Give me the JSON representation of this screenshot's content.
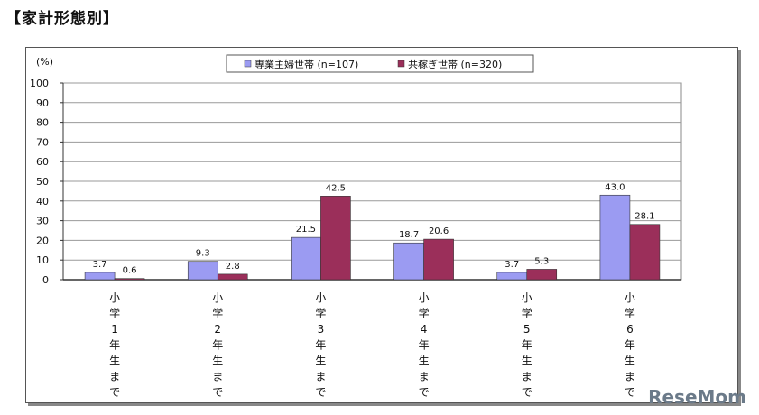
{
  "page": {
    "heading": "【家計形態別】"
  },
  "watermark": "ReseMom",
  "chart_data": {
    "type": "bar",
    "title": "",
    "ylabel": "(%)",
    "ylim": [
      0,
      100
    ],
    "yticks": [
      0,
      10,
      20,
      30,
      40,
      50,
      60,
      70,
      80,
      90,
      100
    ],
    "grid": true,
    "legend_position": "top",
    "categories": [
      "小学1年生まで",
      "小学2年生まで",
      "小学3年生まで",
      "小学4年生まで",
      "小学5年生まで",
      "小学6年生まで"
    ],
    "series": [
      {
        "name": "専業主婦世帯 (n=107)",
        "color": "#9b9bf2",
        "values": [
          3.7,
          9.3,
          21.5,
          18.7,
          3.7,
          43.0
        ]
      },
      {
        "name": "共稼ぎ世帯 (n=320)",
        "color": "#9b2f5a",
        "values": [
          0.6,
          2.8,
          42.5,
          20.6,
          5.3,
          28.1
        ]
      }
    ],
    "value_labels": [
      [
        "3.7",
        "9.3",
        "21.5",
        "18.7",
        "3.7",
        "43.0"
      ],
      [
        "0.6",
        "2.8",
        "42.5",
        "20.6",
        "5.3",
        "28.1"
      ]
    ]
  }
}
